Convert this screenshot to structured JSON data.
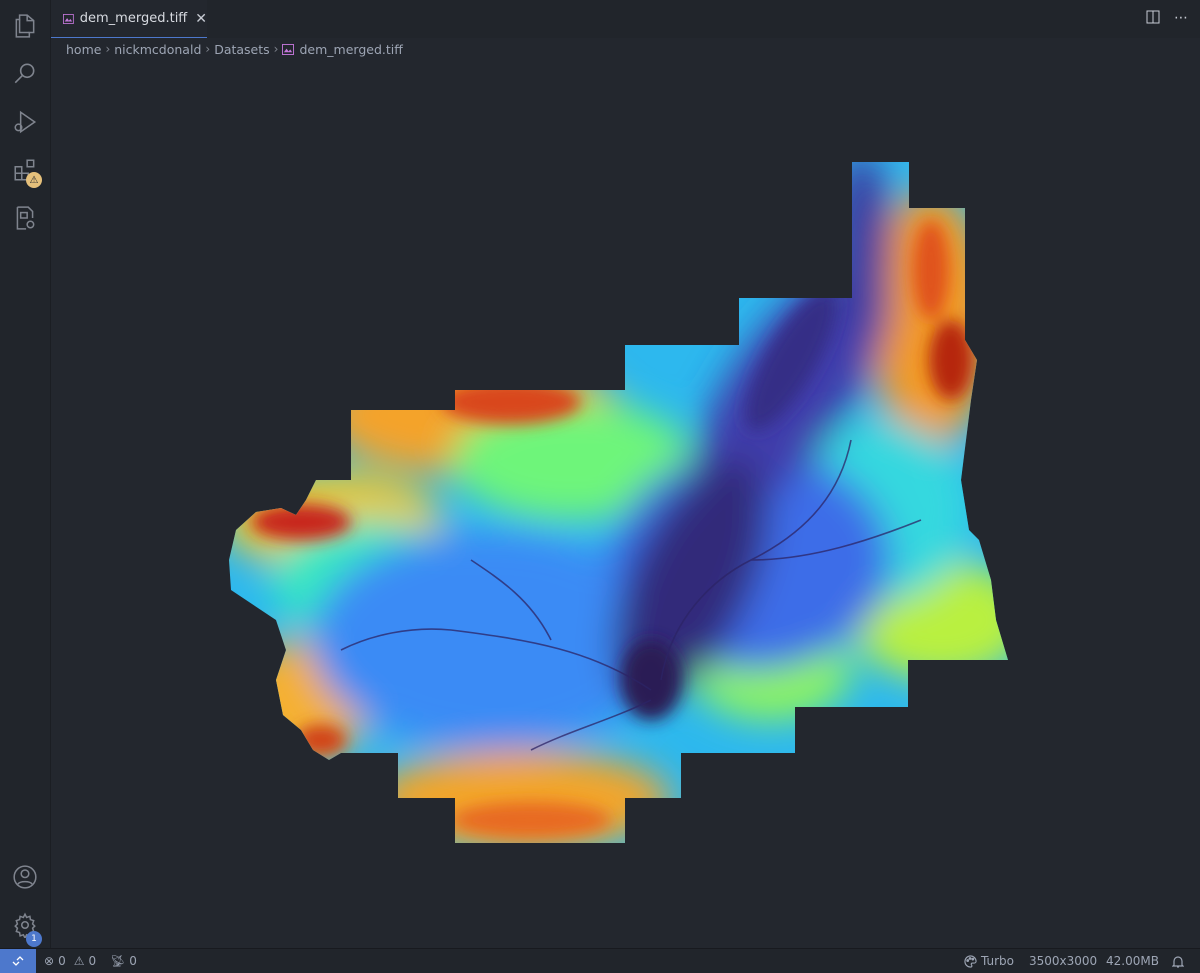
{
  "tab": {
    "filename": "dem_merged.tiff"
  },
  "breadcrumb": {
    "items": [
      "home",
      "nickmcdonald",
      "Datasets"
    ],
    "file": "dem_merged.tiff"
  },
  "status": {
    "errors": "0",
    "warnings": "0",
    "ports": "0",
    "colormap": "Turbo",
    "dimensions": "3500x3000",
    "size": "42.00MB"
  },
  "badges": {
    "extensions": "⚠",
    "settings": "1"
  },
  "colors": {
    "accent": "#4d78cc",
    "warning": "#e5c07b",
    "background": "#23272e"
  },
  "icons": [
    "explorer-icon",
    "search-icon",
    "run-debug-icon",
    "extensions-icon",
    "remote-explorer-icon",
    "account-icon",
    "settings-gear-icon",
    "split-editor-icon",
    "more-actions-icon",
    "close-icon",
    "image-file-icon",
    "error-icon",
    "warning-icon",
    "ports-icon",
    "palette-icon",
    "bell-icon",
    "remote-icon"
  ]
}
